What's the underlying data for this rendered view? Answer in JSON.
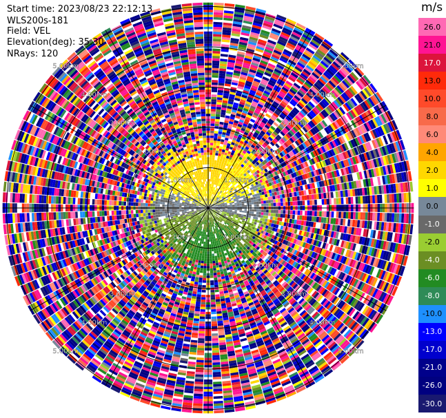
{
  "header": {
    "start_time": "Start time: 2023/08/23 22:12:13",
    "site": "WLS200s-181",
    "field": "Field: VEL",
    "elevation": "Elevation(deg): 35.30",
    "nrays": "NRays: 120"
  },
  "chart_data": {
    "type": "heatmap",
    "projection": "polar-ppi",
    "field": "VEL",
    "site": "WLS200s-181",
    "start_time": "2023/08/23 22:12:13",
    "elevation_deg": 35.3,
    "n_rays": 120,
    "range_ring_labels": [
      "1.00km",
      "2.00km",
      "3.00km",
      "4.00km",
      "5.00km"
    ],
    "range_rings_km": [
      1,
      2,
      3,
      4,
      5
    ],
    "max_range_km": 5.1,
    "spoke_angles_deg": [
      0,
      30,
      60,
      90,
      120,
      150,
      180,
      210,
      240,
      270,
      300,
      330
    ],
    "colorbar": {
      "unit": "m/s",
      "tick_labels": [
        "26.0",
        "21.0",
        "17.0",
        "13.0",
        "10.0",
        "8.0",
        "6.0",
        "4.0",
        "2.0",
        "1.0",
        "0.0",
        "-1.0",
        "-2.0",
        "-4.0",
        "-6.0",
        "-8.0",
        "-10.0",
        "-13.0",
        "-17.0",
        "-21.0",
        "-26.0",
        "-30.0"
      ],
      "bins": [
        {
          "min": 26,
          "max": 30,
          "color": "#ff69b4"
        },
        {
          "min": 21,
          "max": 26,
          "color": "#ff1493"
        },
        {
          "min": 17,
          "max": 21,
          "color": "#dc143c"
        },
        {
          "min": 13,
          "max": 17,
          "color": "#ff2a0a"
        },
        {
          "min": 10,
          "max": 13,
          "color": "#ff4a2a"
        },
        {
          "min": 8,
          "max": 10,
          "color": "#f86a4a"
        },
        {
          "min": 6,
          "max": 8,
          "color": "#ff8a78"
        },
        {
          "min": 4,
          "max": 6,
          "color": "#ffa500"
        },
        {
          "min": 2,
          "max": 4,
          "color": "#ffd700"
        },
        {
          "min": 1,
          "max": 2,
          "color": "#ffff00"
        },
        {
          "min": 0,
          "max": 1,
          "color": "#778899"
        },
        {
          "min": -1,
          "max": 0,
          "color": "#696969"
        },
        {
          "min": -2,
          "max": -1,
          "color": "#9acd32"
        },
        {
          "min": -4,
          "max": -2,
          "color": "#6b8e23"
        },
        {
          "min": -6,
          "max": -4,
          "color": "#228b22"
        },
        {
          "min": -8,
          "max": -6,
          "color": "#2e8b57"
        },
        {
          "min": -10,
          "max": -8,
          "color": "#1e90ff"
        },
        {
          "min": -13,
          "max": -10,
          "color": "#0000ff"
        },
        {
          "min": -17,
          "max": -13,
          "color": "#0000cd"
        },
        {
          "min": -21,
          "max": -17,
          "color": "#00008b"
        },
        {
          "min": -26,
          "max": -21,
          "color": "#000080"
        },
        {
          "min": -30,
          "max": -26,
          "color": "#191970"
        }
      ]
    },
    "velocity_structure": {
      "inner_valid_radius_km": 1.3,
      "north_half_typical_ms": 3.0,
      "south_half_typical_ms": -5.0,
      "noise_range_ms": [
        -30,
        30
      ],
      "noise_begins_km": 1.7
    }
  }
}
